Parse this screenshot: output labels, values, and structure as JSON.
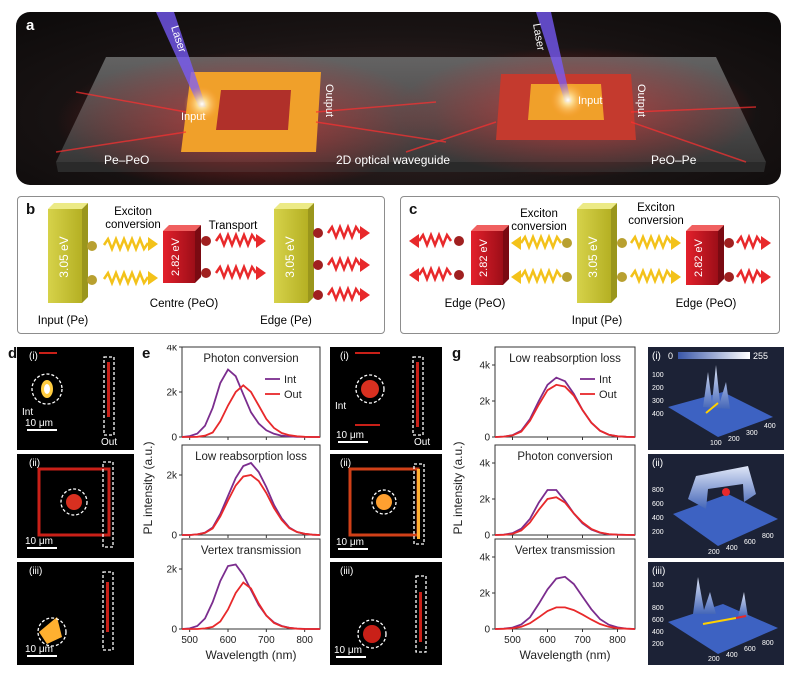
{
  "panel_a": {
    "label": "a",
    "laser_left": "Laser",
    "laser_right": "Laser",
    "input_left": "Input",
    "output_left": "Output",
    "input_right": "Input",
    "output_right": "Output",
    "pe_peo": "Pe–PeO",
    "waveguide": "2D optical waveguide",
    "peo_pe": "PeO–Pe"
  },
  "panel_b": {
    "label": "b",
    "block1_ev": "3.05 eV",
    "block2_ev": "2.82 eV",
    "block3_ev": "3.05 eV",
    "exciton_conversion": "Exciton\nconversion",
    "exciton_line1": "Exciton",
    "exciton_line2": "conversion",
    "transport": "Transport",
    "input_pe": "Input (Pe)",
    "centre_peo": "Centre (PeO)",
    "edge_pe": "Edge (Pe)"
  },
  "panel_c": {
    "label": "c",
    "left_ev": "2.82 eV",
    "mid_ev": "3.05 eV",
    "right_ev": "2.82 eV",
    "exciton_line1": "Exciton",
    "exciton_line2": "conversion",
    "edge_peo_left": "Edge (PeO)",
    "input_pe": "Input (Pe)",
    "edge_peo_right": "Edge (PeO)"
  },
  "panel_d": {
    "label": "d",
    "tiles": [
      {
        "roman": "(i)",
        "scale": "10 μm",
        "int": "Int",
        "out": "Out"
      },
      {
        "roman": "(ii)",
        "scale": "10 μm"
      },
      {
        "roman": "(iii)",
        "scale": "10 μm"
      }
    ]
  },
  "panel_f": {
    "label": "f",
    "tiles": [
      {
        "roman": "(i)",
        "scale": "10 μm",
        "int": "Int",
        "out": "Out"
      },
      {
        "roman": "(ii)",
        "scale": "10 μm"
      },
      {
        "roman": "(iii)",
        "scale": "10 μm"
      }
    ]
  },
  "panel_h": {
    "label": "h",
    "colorbar_min": "0",
    "colorbar_max": "255",
    "tiles": [
      {
        "roman": "(i)",
        "y_ticks": [
          "100",
          "200",
          "300",
          "400"
        ],
        "x_ticks": [
          "100",
          "200",
          "300",
          "400"
        ]
      },
      {
        "roman": "(ii)",
        "y_ticks": [
          "800",
          "600",
          "400",
          "200"
        ],
        "x_ticks": [
          "200",
          "400",
          "600",
          "800"
        ]
      },
      {
        "roman": "(iii)",
        "y_ticks": [
          "100",
          "800",
          "600",
          "400",
          "200"
        ],
        "x_ticks": [
          "200",
          "400",
          "600",
          "800"
        ]
      }
    ]
  },
  "colors": {
    "int": "#7b2d8e",
    "out": "#e8292b"
  },
  "chart_data": [
    {
      "panel": "e",
      "type": "line",
      "ylabel": "PL intensity (a.u.)",
      "xlabel": "Wavelength (nm)",
      "xlim": [
        480,
        840
      ],
      "x_ticks": [
        "500",
        "600",
        "700",
        "800"
      ],
      "subplots": [
        {
          "title": "Photon conversion",
          "ylim": [
            0,
            4000
          ],
          "y_ticks": [
            "0",
            "2k",
            "4k"
          ],
          "legend": [
            "Int",
            "Out"
          ],
          "x": [
            480,
            500,
            520,
            540,
            560,
            580,
            600,
            620,
            640,
            660,
            680,
            700,
            720,
            740,
            760,
            780,
            800,
            820,
            840
          ],
          "series": [
            {
              "name": "Int",
              "values": [
                0,
                40,
                150,
                500,
                1300,
                2400,
                3000,
                2700,
                1900,
                1100,
                600,
                300,
                140,
                60,
                25,
                10,
                5,
                0,
                0
              ]
            },
            {
              "name": "Out",
              "values": [
                0,
                0,
                10,
                60,
                200,
                700,
                1400,
                2000,
                2300,
                2000,
                1400,
                800,
                400,
                180,
                80,
                30,
                10,
                0,
                0
              ]
            }
          ]
        },
        {
          "title": "Low reabsorption loss",
          "ylim": [
            0,
            3000
          ],
          "y_ticks": [
            "0",
            "2k"
          ],
          "legend": [],
          "x": [
            480,
            500,
            520,
            540,
            560,
            580,
            600,
            620,
            640,
            660,
            680,
            700,
            720,
            740,
            760,
            780,
            800,
            820,
            840
          ],
          "series": [
            {
              "name": "Int",
              "values": [
                0,
                0,
                20,
                80,
                250,
                700,
                1300,
                1900,
                2300,
                2400,
                2100,
                1600,
                1000,
                550,
                250,
                100,
                40,
                10,
                0
              ]
            },
            {
              "name": "Out",
              "values": [
                0,
                0,
                20,
                70,
                220,
                620,
                1150,
                1650,
                1950,
                2000,
                1800,
                1400,
                900,
                500,
                230,
                100,
                40,
                10,
                0
              ]
            }
          ]
        },
        {
          "title": "Vertex transmission",
          "ylim": [
            0,
            3000
          ],
          "y_ticks": [
            "0",
            "2k"
          ],
          "legend": [],
          "x": [
            480,
            500,
            520,
            540,
            560,
            580,
            600,
            620,
            640,
            660,
            680,
            700,
            720,
            740,
            760,
            780,
            800,
            820,
            840
          ],
          "series": [
            {
              "name": "Int",
              "values": [
                0,
                20,
                100,
                350,
                900,
                1600,
                2100,
                2150,
                1800,
                1300,
                800,
                450,
                220,
                100,
                40,
                15,
                5,
                0,
                0
              ]
            },
            {
              "name": "Out",
              "values": [
                0,
                0,
                0,
                20,
                70,
                250,
                650,
                1200,
                1550,
                1350,
                850,
                450,
                200,
                90,
                35,
                10,
                0,
                0,
                0
              ]
            }
          ]
        }
      ]
    },
    {
      "panel": "g",
      "type": "line",
      "ylabel": "PL intensity (a.u.)",
      "xlabel": "Wavelength (nm)",
      "xlim": [
        450,
        850
      ],
      "x_ticks": [
        "500",
        "600",
        "700",
        "800"
      ],
      "subplots": [
        {
          "title": "Low reabsorption loss",
          "ylim": [
            0,
            5000
          ],
          "y_ticks": [
            "0",
            "2k",
            "4k"
          ],
          "legend": [
            "Int",
            "Out"
          ],
          "x": [
            450,
            475,
            500,
            525,
            550,
            575,
            600,
            625,
            650,
            675,
            700,
            725,
            750,
            775,
            800,
            825,
            850
          ],
          "series": [
            {
              "name": "Int",
              "values": [
                0,
                20,
                100,
                350,
                1000,
                2000,
                2900,
                3300,
                3100,
                2400,
                1500,
                800,
                350,
                130,
                40,
                10,
                0
              ]
            },
            {
              "name": "Out",
              "values": [
                0,
                20,
                90,
                300,
                900,
                1800,
                2600,
                2900,
                2800,
                2300,
                1500,
                800,
                350,
                130,
                40,
                10,
                0
              ]
            }
          ]
        },
        {
          "title": "Photon conversion",
          "ylim": [
            0,
            5000
          ],
          "y_ticks": [
            "0",
            "2k",
            "4k"
          ],
          "legend": [],
          "x": [
            450,
            475,
            500,
            525,
            550,
            575,
            600,
            625,
            650,
            675,
            700,
            725,
            750,
            775,
            800,
            825,
            850
          ],
          "series": [
            {
              "name": "Int",
              "values": [
                0,
                20,
                100,
                350,
                900,
                1800,
                2500,
                2500,
                1900,
                1200,
                650,
                300,
                120,
                40,
                15,
                5,
                0
              ]
            },
            {
              "name": "Out",
              "values": [
                0,
                10,
                60,
                250,
                700,
                1400,
                2000,
                2100,
                1800,
                1200,
                700,
                340,
                140,
                50,
                15,
                5,
                0
              ]
            }
          ]
        },
        {
          "title": "Vertex transmission",
          "ylim": [
            0,
            5000
          ],
          "y_ticks": [
            "0",
            "2k",
            "4k"
          ],
          "legend": [],
          "x": [
            450,
            475,
            500,
            525,
            550,
            575,
            600,
            625,
            650,
            675,
            700,
            725,
            750,
            775,
            800,
            825,
            850
          ],
          "series": [
            {
              "name": "Int",
              "values": [
                0,
                20,
                80,
                250,
                650,
                1400,
                2200,
                2800,
                2900,
                2500,
                1800,
                1100,
                550,
                240,
                90,
                25,
                0
              ]
            },
            {
              "name": "Out",
              "values": [
                0,
                10,
                40,
                120,
                320,
                650,
                1000,
                1200,
                1200,
                1050,
                800,
                520,
                280,
                120,
                45,
                15,
                0
              ]
            }
          ]
        }
      ]
    }
  ]
}
